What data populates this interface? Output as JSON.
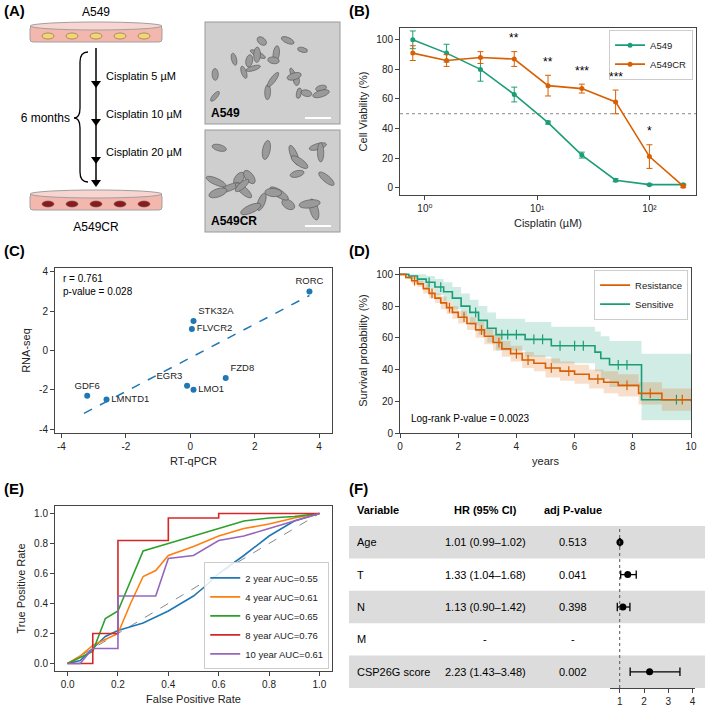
{
  "diagram": {
    "panel": "(A)",
    "start_line": "A549",
    "end_line": "A549CR",
    "steps": [
      "Cisplatin 5 µM",
      "Cisplatin 10 µM",
      "Cisplatin 20 µM"
    ],
    "duration": "6 months",
    "image_labels": [
      "A549",
      "A549CR"
    ]
  },
  "chart_data": [
    {
      "panel": "(B)",
      "type": "line",
      "x_label": "Cisplatin (µM)",
      "y_label": "Cell Viability (%)",
      "log": "x",
      "x": [
        0.78,
        1.56,
        3.125,
        6.25,
        12.5,
        25,
        50,
        100,
        200
      ],
      "series": [
        {
          "name": "A549",
          "color": "#1b9e77",
          "marker": "circle",
          "values": [
            100,
            91,
            80,
            63,
            44,
            22,
            5,
            2,
            2
          ],
          "errors": [
            6,
            6,
            8,
            5,
            1,
            2,
            1,
            0.5,
            0.5
          ]
        },
        {
          "name": "A549CR",
          "color": "#d95f02",
          "marker": "circle",
          "values": [
            91,
            86,
            88,
            87,
            69,
            67,
            58,
            21,
            1
          ],
          "errors": [
            5,
            4,
            4,
            5,
            7,
            3,
            8,
            8,
            1
          ]
        }
      ],
      "annotations": [
        {
          "x": 6.25,
          "y": 95,
          "text": "**"
        },
        {
          "x": 12.5,
          "y": 79,
          "text": "**"
        },
        {
          "x": 25,
          "y": 73,
          "text": "***"
        },
        {
          "x": 50,
          "y": 69,
          "text": "***"
        },
        {
          "x": 100,
          "y": 32,
          "text": "*"
        }
      ],
      "reference_line": 50,
      "xlim": [
        0.6,
        260
      ],
      "ylim": [
        -5,
        108
      ],
      "xticks": [
        {
          "value": 1,
          "label": "10⁰"
        },
        {
          "value": 10,
          "label": "10¹"
        },
        {
          "value": 100,
          "label": "10²"
        }
      ],
      "yticks": [
        0,
        20,
        40,
        60,
        80,
        100
      ],
      "legend": "upper right",
      "grid": false
    },
    {
      "panel": "(C)",
      "type": "scatter",
      "x_label": "RT-qPCR",
      "y_label": "RNA-seq",
      "labels": [
        "RORC",
        "STK32A",
        "FLVCR2",
        "FZD8",
        "EGR3",
        "LMO1",
        "GDF6",
        "LMNTD1"
      ],
      "x": [
        3.7,
        0.1,
        0.05,
        1.1,
        -0.1,
        0.1,
        -3.2,
        -2.6
      ],
      "values": [
        3.0,
        1.5,
        1.1,
        -1.4,
        -1.8,
        -2.0,
        -2.3,
        -2.5
      ],
      "color": "#1f77b4",
      "fit": {
        "x": [
          -3.3,
          3.7
        ],
        "values": [
          -3.2,
          2.8
        ],
        "line_style": "dashed"
      },
      "annotations": [
        {
          "text": "r = 0.761"
        },
        {
          "text": "p-value = 0.028"
        }
      ],
      "xlim": [
        -4.2,
        4.4
      ],
      "ylim": [
        -4.2,
        4.2
      ],
      "xticks": [
        -4,
        -2,
        0,
        2,
        4
      ],
      "yticks": [
        -4,
        -2,
        0,
        2,
        4
      ],
      "grid": false
    },
    {
      "panel": "(D)",
      "type": "step",
      "x_label": "years",
      "y_label": "Survival probability (%)",
      "series": [
        {
          "name": "Sensitive",
          "color": "#1b9e77",
          "x": [
            0,
            0.3,
            0.6,
            0.9,
            1.2,
            1.5,
            1.8,
            2.1,
            2.4,
            2.7,
            3.0,
            3.3,
            4.3,
            5.2,
            6.7,
            6.9,
            7.2,
            8.2,
            8.3,
            10
          ],
          "values": [
            100,
            99,
            97,
            95,
            92,
            89,
            85,
            80,
            76,
            71,
            66,
            62,
            59,
            55,
            51,
            47,
            43,
            43,
            21,
            21
          ],
          "ci_lower": [
            100,
            97,
            94,
            91,
            87,
            83,
            78,
            73,
            68,
            62,
            57,
            52,
            48,
            44,
            39,
            34,
            29,
            29,
            8,
            8
          ],
          "ci_upper": [
            100,
            100,
            100,
            99,
            97,
            95,
            92,
            88,
            84,
            80,
            76,
            72,
            70,
            67,
            64,
            61,
            58,
            58,
            50,
            50
          ],
          "censored_x": [
            1.0,
            1.4,
            2.6,
            3.5,
            3.7,
            4.0,
            4.6,
            4.9,
            5.5,
            6.0,
            6.3,
            7.5,
            7.8,
            9.5
          ],
          "censored_y": [
            95,
            92,
            76,
            62,
            62,
            62,
            59,
            59,
            55,
            55,
            55,
            43,
            43,
            21
          ]
        },
        {
          "name": "Resistance",
          "color": "#d95f02",
          "x": [
            0,
            0.2,
            0.4,
            0.6,
            0.8,
            1.0,
            1.2,
            1.4,
            1.6,
            1.8,
            2.0,
            2.3,
            2.6,
            2.9,
            3.2,
            3.5,
            3.8,
            4.2,
            4.6,
            5.0,
            5.5,
            6.0,
            6.5,
            7.0,
            7.5,
            8.2,
            9.0,
            10
          ],
          "values": [
            100,
            98,
            96,
            94,
            91,
            88,
            85,
            82,
            79,
            76,
            73,
            69,
            65,
            61,
            57,
            53,
            50,
            46,
            44,
            41,
            39,
            37,
            34,
            32,
            30,
            25,
            21,
            20
          ],
          "ci_lower": [
            100,
            97,
            94,
            92,
            88,
            85,
            82,
            78,
            75,
            72,
            69,
            65,
            60,
            56,
            52,
            48,
            45,
            41,
            39,
            35,
            33,
            31,
            28,
            25,
            23,
            18,
            14,
            13
          ],
          "ci_upper": [
            100,
            99,
            98,
            96,
            94,
            91,
            88,
            86,
            83,
            80,
            77,
            73,
            70,
            66,
            62,
            58,
            55,
            51,
            49,
            47,
            45,
            43,
            40,
            39,
            37,
            32,
            28,
            27
          ],
          "censored_x": [
            0.5,
            1.1,
            1.7,
            2.2,
            2.8,
            3.4,
            4.0,
            4.4,
            5.2,
            5.8,
            6.8,
            7.8,
            8.6,
            9.7
          ],
          "censored_y": [
            96,
            88,
            79,
            73,
            65,
            57,
            50,
            46,
            41,
            39,
            34,
            30,
            25,
            21
          ]
        }
      ],
      "annotations": [
        {
          "text": "Log-rank P-value = 0.0023"
        }
      ],
      "xlim": [
        0,
        10
      ],
      "ylim": [
        0,
        104
      ],
      "xticks": [
        0,
        2,
        4,
        6,
        8,
        10
      ],
      "yticks": [
        0,
        20,
        40,
        60,
        80,
        100
      ],
      "legend": "upper right",
      "grid": false
    },
    {
      "panel": "(E)",
      "type": "line",
      "x_label": "False Positive Rate",
      "y_label": "True Positive Rate",
      "series": [
        {
          "name": "2 year AUC=0.55",
          "color": "#1f77b4",
          "x": [
            0,
            0.05,
            0.1,
            0.15,
            0.2,
            0.3,
            0.4,
            0.5,
            0.55,
            0.6,
            0.7,
            0.8,
            0.9,
            1.0
          ],
          "values": [
            0,
            0.02,
            0.1,
            0.18,
            0.22,
            0.27,
            0.35,
            0.45,
            0.52,
            0.6,
            0.72,
            0.85,
            0.95,
            1.0
          ]
        },
        {
          "name": "4 year AUC=0.61",
          "color": "#ff7f0e",
          "x": [
            0,
            0.05,
            0.1,
            0.2,
            0.25,
            0.3,
            0.35,
            0.4,
            0.5,
            0.6,
            0.7,
            0.8,
            0.9,
            1.0
          ],
          "values": [
            0,
            0.05,
            0.12,
            0.2,
            0.4,
            0.58,
            0.62,
            0.72,
            0.78,
            0.85,
            0.9,
            0.93,
            0.97,
            1.0
          ]
        },
        {
          "name": "6 year AUC=0.65",
          "color": "#2ca02c",
          "x": [
            0,
            0.1,
            0.15,
            0.2,
            0.25,
            0.3,
            0.4,
            0.5,
            0.6,
            0.7,
            0.8,
            0.9,
            1.0
          ],
          "values": [
            0,
            0.08,
            0.3,
            0.35,
            0.55,
            0.75,
            0.8,
            0.85,
            0.9,
            0.95,
            0.97,
            0.98,
            1.0
          ]
        },
        {
          "name": "8 year AUC=0.76",
          "color": "#d62728",
          "x": [
            0,
            0.1,
            0.1,
            0.2,
            0.2,
            0.4,
            0.4,
            0.6,
            0.6,
            1.0
          ],
          "values": [
            0,
            0,
            0.2,
            0.2,
            0.82,
            0.82,
            0.97,
            0.97,
            1.0,
            1.0
          ]
        },
        {
          "name": "10 year AUC=0.61",
          "color": "#9467bd",
          "x": [
            0,
            0.05,
            0.1,
            0.2,
            0.2,
            0.35,
            0.4,
            0.5,
            0.6,
            0.7,
            0.8,
            0.9,
            1.0
          ],
          "values": [
            0,
            0,
            0.1,
            0.1,
            0.45,
            0.45,
            0.7,
            0.72,
            0.82,
            0.85,
            0.9,
            0.95,
            1.0
          ]
        }
      ],
      "reference": {
        "x": [
          0,
          1
        ],
        "values": [
          0,
          1
        ],
        "color": "#888888",
        "line_style": "dashed"
      },
      "xlim": [
        -0.05,
        1.05
      ],
      "ylim": [
        -0.05,
        1.05
      ],
      "xticks": [
        {
          "value": 0,
          "label": "0.0"
        },
        {
          "value": 0.2,
          "label": "0.2"
        },
        {
          "value": 0.4,
          "label": "0.4"
        },
        {
          "value": 0.6,
          "label": "0.6"
        },
        {
          "value": 0.8,
          "label": "0.8"
        },
        {
          "value": 1,
          "label": "1.0"
        }
      ],
      "yticks": [
        {
          "value": 0,
          "label": "0.0"
        },
        {
          "value": 0.2,
          "label": "0.2"
        },
        {
          "value": 0.4,
          "label": "0.4"
        },
        {
          "value": 0.6,
          "label": "0.6"
        },
        {
          "value": 0.8,
          "label": "0.8"
        },
        {
          "value": 1,
          "label": "1.0"
        }
      ],
      "legend": "lower right",
      "grid": false
    },
    {
      "panel": "(F)",
      "type": "forest",
      "columns": [
        "Variable",
        "HR (95% CI)",
        "adj P-value"
      ],
      "rows": [
        {
          "variable": "Age",
          "hr_text": "1.01 (0.99–1.02)",
          "p_text": "0.513",
          "hr": 1.01,
          "lo": 0.99,
          "hi": 1.02
        },
        {
          "variable": "T",
          "hr_text": "1.33 (1.04–1.68)",
          "p_text": "0.041",
          "hr": 1.33,
          "lo": 1.04,
          "hi": 1.68
        },
        {
          "variable": "N",
          "hr_text": "1.13 (0.90–1.42)",
          "p_text": "0.398",
          "hr": 1.13,
          "lo": 0.9,
          "hi": 1.42
        },
        {
          "variable": "M",
          "hr_text": "-",
          "p_text": "-",
          "hr": null,
          "lo": null,
          "hi": null
        },
        {
          "variable": "CSP26G score",
          "hr_text": "2.23 (1.43–3.48)",
          "p_text": "0.002",
          "hr": 2.23,
          "lo": 1.43,
          "hi": 3.48
        }
      ],
      "reference_line": 1,
      "xlim": [
        0.6,
        4.1
      ],
      "xticks": [
        1,
        2,
        3,
        4
      ]
    }
  ]
}
